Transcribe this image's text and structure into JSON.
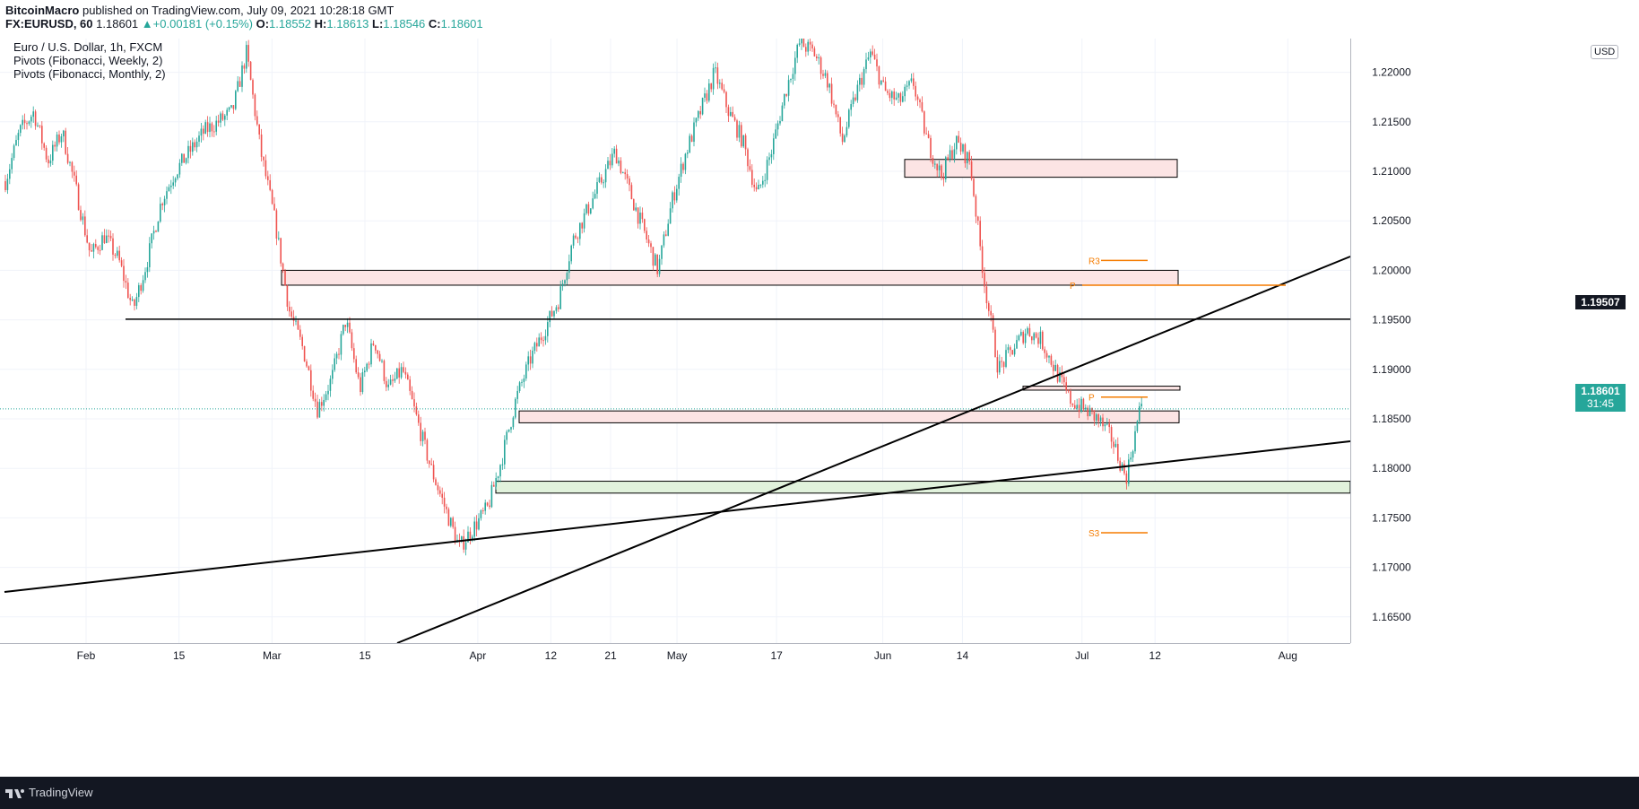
{
  "header": {
    "publisher": "BitcoinMacro",
    "published_text": "published on TradingView.com, July 09, 2021 10:28:18 GMT",
    "symbol": "FX:EURUSD, 60",
    "last": "1.18601",
    "change": "+0.00181 (+0.15%)",
    "o_label": "O:",
    "o": "1.18552",
    "h_label": "H:",
    "h": "1.18613",
    "l_label": "L:",
    "l": "1.18546",
    "c_label": "C:",
    "c": "1.18601"
  },
  "legend": {
    "title": "Euro / U.S. Dollar, 1h, FXCM",
    "ind1": "Pivots (Fibonacci, Weekly, 2)",
    "ind2": "Pivots (Fibonacci, Monthly, 2)"
  },
  "currency": "USD",
  "price_tags": {
    "level": "1.19507",
    "last": "1.18601",
    "countdown": "31:45"
  },
  "footer": {
    "brand": "TradingView"
  },
  "colors": {
    "up": "#26a69a",
    "down": "#ef5350",
    "resistance": "#fce4e4",
    "support": "#e1f2dc",
    "pivot": "#f57c00",
    "last_tag": "#26a69a"
  },
  "chart_data": {
    "type": "candlestick",
    "timeframe": "1h",
    "ylim": [
      1.1605,
      1.2225
    ],
    "y_ticks": [
      1.165,
      1.17,
      1.175,
      1.18,
      1.185,
      1.19,
      1.195,
      1.2,
      1.205,
      1.21,
      1.215,
      1.22
    ],
    "y_tick_labels": [
      "1.16500",
      "1.17000",
      "1.17500",
      "1.18000",
      "1.18500",
      "1.19000",
      "1.19500",
      "1.20000",
      "1.20500",
      "1.21000",
      "1.21500",
      "1.22000"
    ],
    "x_ticks": [
      "Feb",
      "15",
      "Mar",
      "15",
      "Apr",
      "12",
      "21",
      "May",
      "17",
      "Jun",
      "14",
      "Jul",
      "12",
      "Aug"
    ],
    "path_days": [
      0,
      3,
      6,
      9,
      12,
      15,
      18,
      21,
      24,
      27,
      30,
      33,
      36,
      39,
      42,
      45,
      48,
      51,
      54,
      57,
      60,
      63,
      66,
      69,
      72,
      75,
      78,
      81,
      84,
      87,
      90,
      93,
      96,
      99,
      102,
      105,
      108,
      111,
      114,
      117,
      120,
      123,
      126,
      129,
      132,
      135,
      138,
      141,
      144,
      147,
      150,
      153,
      156,
      159,
      162,
      165,
      168,
      171,
      174,
      177,
      180,
      183,
      186,
      189,
      192,
      195,
      198,
      201,
      204,
      207,
      210,
      213,
      216,
      219,
      222,
      225,
      228,
      231,
      234,
      237,
      240
    ],
    "path_prices": [
      1.209,
      1.214,
      1.216,
      1.211,
      1.214,
      1.208,
      1.2015,
      1.2035,
      1.201,
      1.196,
      1.201,
      1.207,
      1.21,
      1.212,
      1.214,
      1.215,
      1.216,
      1.222,
      1.212,
      1.205,
      1.196,
      1.192,
      1.186,
      1.189,
      1.195,
      1.188,
      1.193,
      1.188,
      1.19,
      1.185,
      1.18,
      1.176,
      1.172,
      1.174,
      1.176,
      1.181,
      1.187,
      1.191,
      1.194,
      1.197,
      1.203,
      1.206,
      1.209,
      1.212,
      1.208,
      1.204,
      1.2,
      1.207,
      1.212,
      1.216,
      1.22,
      1.216,
      1.213,
      1.2075,
      1.212,
      1.218,
      1.223,
      1.222,
      1.219,
      1.213,
      1.218,
      1.222,
      1.218,
      1.217,
      1.219,
      1.213,
      1.2095,
      1.213,
      1.211,
      1.199,
      1.19,
      1.192,
      1.194,
      1.193,
      1.19,
      1.187,
      1.186,
      1.185,
      1.183,
      1.179,
      1.186
    ],
    "last_price": 1.18601,
    "horizontal_level": 1.19507,
    "zones": [
      {
        "label": "resistance",
        "from_day": 214,
        "to_day": 272,
        "low": 1.2094,
        "high": 1.2112
      },
      {
        "label": "resistance",
        "from_day": 57,
        "to_day": 272,
        "low": 1.1985,
        "high": 1.2
      },
      {
        "label": "resistance",
        "from_day": 117,
        "to_day": 272,
        "low": 1.1846,
        "high": 1.1858
      },
      {
        "label": "resistance",
        "from_day": 240,
        "to_day": 272,
        "low": 1.1879,
        "high": 1.1883
      },
      {
        "label": "support",
        "from_day": 112,
        "to_day": 318,
        "low": 1.1775,
        "high": 1.1787
      }
    ],
    "trendlines": [
      {
        "from_day": -12,
        "from_price": 1.1657,
        "to_day": 318,
        "to_price": 1.1809
      },
      {
        "from_day": 85,
        "from_price": 1.16,
        "to_day": 318,
        "to_price": 1.1994
      }
    ],
    "pivots": [
      {
        "label": "R3",
        "price": 1.201
      },
      {
        "label": "P",
        "price": 1.1985
      },
      {
        "label": "P",
        "price": 1.1872
      },
      {
        "label": "S3",
        "price": 1.1735
      }
    ]
  }
}
